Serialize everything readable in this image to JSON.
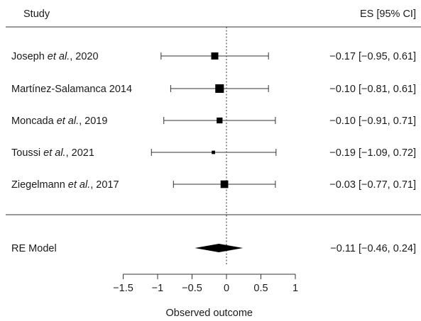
{
  "chart_data": {
    "type": "forest",
    "header": {
      "study_label": "Study",
      "es_label": "ES [95% CI]"
    },
    "studies": [
      {
        "label_main": "Joseph ",
        "label_italic": "et al.",
        "label_tail": ", 2020",
        "es": -0.17,
        "lower": -0.95,
        "upper": 0.61,
        "weight": 0.2,
        "es_text": "−0.17 [−0.95, 0.61]"
      },
      {
        "label_main": "Martínez-Salamanca 2014",
        "label_italic": "",
        "label_tail": "",
        "es": -0.1,
        "lower": -0.81,
        "upper": 0.61,
        "weight": 0.26,
        "es_text": "−0.10 [−0.81, 0.61]"
      },
      {
        "label_main": "Moncada ",
        "label_italic": "et al.",
        "label_tail": ", 2019",
        "es": -0.1,
        "lower": -0.91,
        "upper": 0.71,
        "weight": 0.15,
        "es_text": "−0.10 [−0.91, 0.71]"
      },
      {
        "label_main": "Toussi ",
        "label_italic": "et al.",
        "label_tail": ", 2021",
        "es": -0.19,
        "lower": -1.09,
        "upper": 0.72,
        "weight": 0.05,
        "es_text": "−0.19 [−1.09, 0.72]"
      },
      {
        "label_main": "Ziegelmann ",
        "label_italic": "et al.",
        "label_tail": ", 2017",
        "es": -0.03,
        "lower": -0.77,
        "upper": 0.71,
        "weight": 0.22,
        "es_text": "−0.03 [−0.77, 0.71]"
      }
    ],
    "summary": {
      "label": "RE Model",
      "es": -0.11,
      "lower": -0.46,
      "upper": 0.24,
      "es_text": "−0.11 [−0.46, 0.24]"
    },
    "xlim": [
      -1.5,
      1
    ],
    "xticks": [
      -1.5,
      -1,
      -0.5,
      0,
      0.5,
      1
    ],
    "xtick_labels": [
      "−1.5",
      "−1",
      "−0.5",
      "0",
      "0.5",
      "1"
    ],
    "xlabel": "Observed outcome",
    "reference_line": 0
  }
}
